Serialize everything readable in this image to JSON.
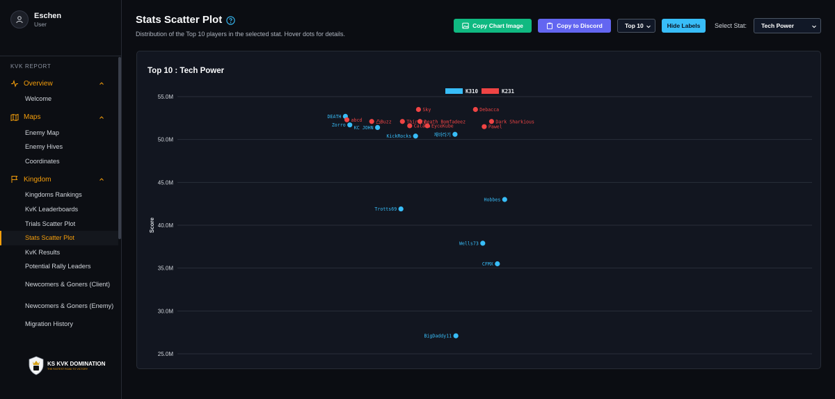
{
  "user": {
    "name": "Eschen",
    "role": "User"
  },
  "sidebar": {
    "section": "KVK REPORT",
    "groups": [
      {
        "label": "Overview",
        "icon": "activity-icon",
        "items": [
          "Welcome"
        ]
      },
      {
        "label": "Maps",
        "icon": "map-icon",
        "items": [
          "Enemy Map",
          "Enemy Hives",
          "Coordinates"
        ]
      },
      {
        "label": "Kingdom",
        "icon": "flag-icon",
        "items": [
          "Kingdoms Rankings",
          "KvK Leaderboards",
          "Trials Scatter Plot",
          "Stats Scatter Plot",
          "KvK Results",
          "Potential Rally Leaders",
          "Newcomers & Goners (Client)",
          "Newcomers & Goners (Enemy)",
          "Migration History"
        ]
      }
    ],
    "active_item": "Stats Scatter Plot",
    "logo_title": "KS KVK DOMINATION",
    "logo_sub": "THE FASTEST ROAD TO VICTORY"
  },
  "header": {
    "title": "Stats Scatter Plot",
    "subtitle": "Distribution of the Top 10 players in the selected stat. Hover dots for details.",
    "copy_image": "Copy Chart Image",
    "copy_discord": "Copy to Discord",
    "top_select": "Top 10",
    "hide_labels": "Hide Labels",
    "stat_label": "Select Stat:",
    "stat_select": "Tech Power"
  },
  "colors": {
    "k310": "#38bdf8",
    "k231": "#ef4444",
    "accent": "#f59e0b",
    "green": "#10b981",
    "indigo": "#6366f1"
  },
  "chart_data": {
    "type": "scatter",
    "title": "Top 10 : Tech Power",
    "ylabel": "Score",
    "xlabel": "",
    "ylim": [
      25,
      55
    ],
    "yticks": [
      "55.0M",
      "50.0M",
      "45.0M",
      "40.0M",
      "35.0M",
      "30.0M",
      "25.0M"
    ],
    "ytick_values": [
      55,
      50,
      45,
      40,
      35,
      30,
      25
    ],
    "y_unit": "M",
    "legend_position": "top-center",
    "grid": true,
    "series": [
      {
        "name": "K310",
        "points": [
          {
            "label": "DEATH",
            "x": 0.07,
            "y": 52.7
          },
          {
            "label": "Zorro",
            "x": 0.085,
            "y": 51.7
          },
          {
            "label": "KC JOHN",
            "x": 0.18,
            "y": 51.4
          },
          {
            "label": "KickRocks",
            "x": 0.31,
            "y": 50.4
          },
          {
            "label": "재바라기",
            "x": 0.445,
            "y": 50.6
          },
          {
            "label": "Trotts69",
            "x": 0.26,
            "y": 41.9
          },
          {
            "label": "Hobbes",
            "x": 0.615,
            "y": 43.0
          },
          {
            "label": "Wells73",
            "x": 0.54,
            "y": 37.9
          },
          {
            "label": "CFMX",
            "x": 0.59,
            "y": 35.5
          },
          {
            "label": "BigDaddy11",
            "x": 0.448,
            "y": 27.1
          }
        ]
      },
      {
        "name": "K231",
        "points": [
          {
            "label": "abcd",
            "x": 0.075,
            "y": 52.3
          },
          {
            "label": "凸Buzz",
            "x": 0.16,
            "y": 52.1
          },
          {
            "label": "Sky",
            "x": 0.32,
            "y": 53.5
          },
          {
            "label": "Thirsty",
            "x": 0.265,
            "y": 52.1
          },
          {
            "label": "Death Bomfadeez",
            "x": 0.325,
            "y": 52.1
          },
          {
            "label": "Calaaa",
            "x": 0.29,
            "y": 51.6
          },
          {
            "label": "EyceKube",
            "x": 0.35,
            "y": 51.6
          },
          {
            "label": "Debacca",
            "x": 0.515,
            "y": 53.5
          },
          {
            "label": "Dark Sharkious",
            "x": 0.57,
            "y": 52.1
          },
          {
            "label": "Pawel",
            "x": 0.545,
            "y": 51.5
          }
        ]
      }
    ]
  }
}
